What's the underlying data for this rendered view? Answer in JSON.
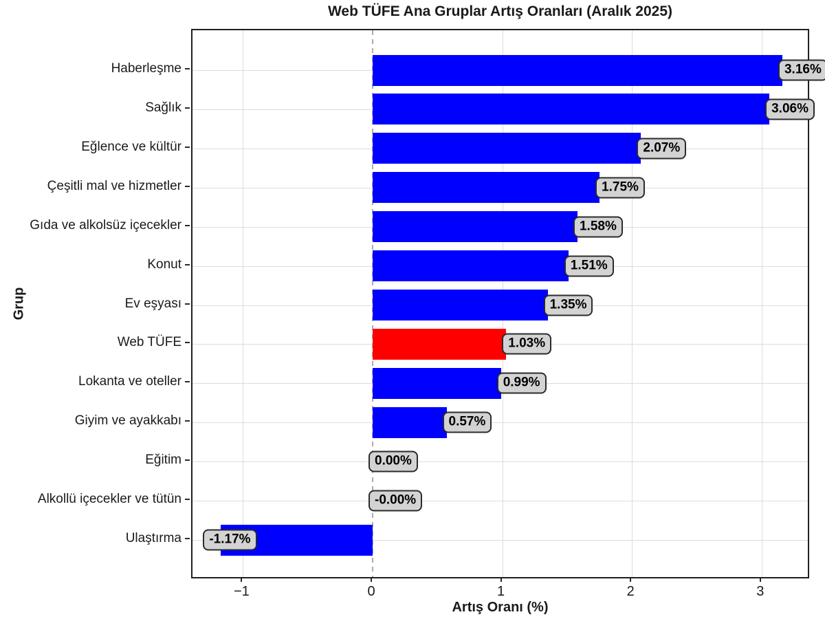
{
  "chart_data": {
    "type": "bar",
    "orientation": "horizontal",
    "title": "Web TÜFE Ana Gruplar Artış Oranları (Aralık 2025)",
    "xlabel": "Artış Oranı (%)",
    "ylabel": "Grup",
    "categories": [
      "Haberleşme",
      "Sağlık",
      "Eğlence ve kültür",
      "Çeşitli mal ve hizmetler",
      "Gıda ve alkolsüz içecekler",
      "Konut",
      "Ev eşyası",
      "Web TÜFE",
      "Lokanta ve oteller",
      "Giyim ve ayakkabı",
      "Eğitim",
      "Alkollü içecekler ve tütün",
      "Ulaştırma"
    ],
    "values": [
      3.16,
      3.06,
      2.07,
      1.75,
      1.58,
      1.51,
      1.35,
      1.03,
      0.99,
      0.57,
      0.0,
      -0.0,
      -1.17
    ],
    "bar_labels": [
      "3.16%",
      "3.06%",
      "2.07%",
      "1.75%",
      "1.58%",
      "1.51%",
      "1.35%",
      "1.03%",
      "0.99%",
      "0.57%",
      "0.00%",
      "-0.00%",
      "-1.17%"
    ],
    "highlight_category": "Web TÜFE",
    "xticks": {
      "values": [
        -1,
        0,
        1,
        2,
        3
      ],
      "labels": [
        "−1",
        "0",
        "1",
        "2",
        "3"
      ]
    },
    "xlim": [
      -1.39,
      3.38
    ],
    "grid": true,
    "legend": "none",
    "zero_line_style": "dashed",
    "colors": {
      "bar": "#0000ff",
      "highlight_bar": "#ff0000",
      "label_box_bg": "#d3d3d3",
      "label_box_border": "#2b2b2b",
      "grid": "#dcdcdc",
      "zero_line": "#ababab",
      "spine": "#1f1f1f",
      "text": "#1a1a1a"
    }
  }
}
